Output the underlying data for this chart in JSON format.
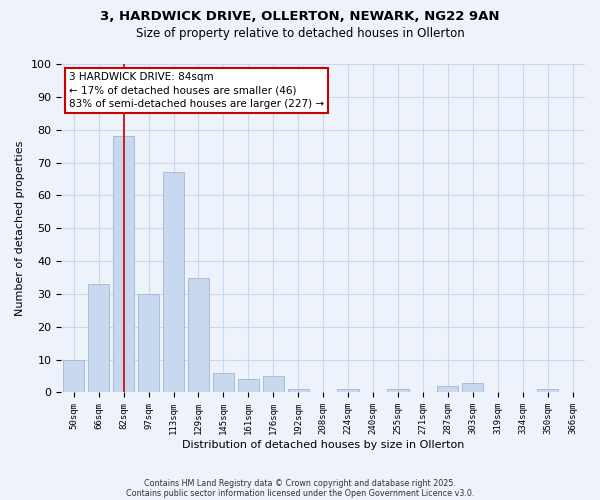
{
  "title_line1": "3, HARDWICK DRIVE, OLLERTON, NEWARK, NG22 9AN",
  "title_line2": "Size of property relative to detached houses in Ollerton",
  "xlabel": "Distribution of detached houses by size in Ollerton",
  "ylabel": "Number of detached properties",
  "categories": [
    "50sqm",
    "66sqm",
    "82sqm",
    "97sqm",
    "113sqm",
    "129sqm",
    "145sqm",
    "161sqm",
    "176sqm",
    "192sqm",
    "208sqm",
    "224sqm",
    "240sqm",
    "255sqm",
    "271sqm",
    "287sqm",
    "303sqm",
    "319sqm",
    "334sqm",
    "350sqm",
    "366sqm"
  ],
  "values": [
    10,
    33,
    78,
    30,
    67,
    35,
    6,
    4,
    5,
    1,
    0,
    1,
    0,
    1,
    0,
    2,
    3,
    0,
    0,
    1,
    0
  ],
  "bar_color": "#c8d8ee",
  "bar_edge_color": "#a8bcd8",
  "grid_color": "#c8d8ee",
  "annotation_box_color": "#ffffff",
  "annotation_border_color": "#cc0000",
  "vline_color": "#cc0000",
  "vline_x_index": 2,
  "annotation_text_line1": "3 HARDWICK DRIVE: 84sqm",
  "annotation_text_line2": "← 17% of detached houses are smaller (46)",
  "annotation_text_line3": "83% of semi-detached houses are larger (227) →",
  "ylim": [
    0,
    100
  ],
  "yticks": [
    0,
    10,
    20,
    30,
    40,
    50,
    60,
    70,
    80,
    90,
    100
  ],
  "footnote1": "Contains HM Land Registry data © Crown copyright and database right 2025.",
  "footnote2": "Contains public sector information licensed under the Open Government Licence v3.0.",
  "bg_color": "#eef2fa"
}
